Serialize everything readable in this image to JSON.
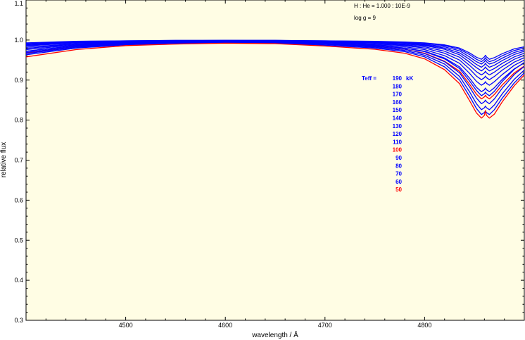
{
  "chart_data": {
    "type": "line",
    "title": "",
    "xlabel": "wavelength / Å",
    "ylabel": "relative flux",
    "xlim": [
      4400,
      4900
    ],
    "ylim": [
      0.3,
      1.1
    ],
    "x_ticks": [
      4500,
      4600,
      4700,
      4800
    ],
    "y_ticks": [
      0.3,
      0.4,
      0.5,
      0.6,
      0.7,
      0.8,
      0.9,
      1.0,
      1.1
    ],
    "x_tick_labels": [
      "4500",
      "4600",
      "4700",
      "4800"
    ],
    "y_tick_labels": [
      "0.3",
      "0.4",
      "0.5",
      "0.6",
      "0.7",
      "0.8",
      "0.9",
      "1.0",
      "1.1"
    ],
    "grid": false,
    "background_color": "#FFFDE4",
    "annotations": {
      "abundance": "H : He = 1.000 : 10E-9",
      "gravity": "log g = 9",
      "teff_label": "Teff =",
      "teff_unit": "kK"
    },
    "legend_placement": "right-inside",
    "line_feature_center": 4861,
    "x": [
      4400,
      4450,
      4500,
      4550,
      4600,
      4650,
      4700,
      4750,
      4780,
      4800,
      4820,
      4835,
      4845,
      4852,
      4857,
      4860,
      4861,
      4862,
      4865,
      4870,
      4878,
      4890,
      4900
    ],
    "series": [
      {
        "name": "190",
        "color": "#0000FF",
        "values": [
          0.993,
          0.997,
          0.998,
          0.999,
          0.999,
          0.999,
          0.998,
          0.997,
          0.995,
          0.993,
          0.988,
          0.98,
          0.968,
          0.957,
          0.952,
          0.958,
          0.962,
          0.958,
          0.952,
          0.956,
          0.966,
          0.978,
          0.983
        ]
      },
      {
        "name": "180",
        "color": "#0000FF",
        "values": [
          0.991,
          0.996,
          0.998,
          0.999,
          0.999,
          0.999,
          0.998,
          0.996,
          0.994,
          0.992,
          0.986,
          0.977,
          0.964,
          0.952,
          0.946,
          0.952,
          0.956,
          0.952,
          0.946,
          0.95,
          0.961,
          0.974,
          0.98
        ]
      },
      {
        "name": "170",
        "color": "#0000FF",
        "values": [
          0.989,
          0.995,
          0.997,
          0.998,
          0.999,
          0.999,
          0.997,
          0.995,
          0.993,
          0.99,
          0.983,
          0.973,
          0.958,
          0.946,
          0.94,
          0.946,
          0.95,
          0.946,
          0.94,
          0.944,
          0.955,
          0.969,
          0.976
        ]
      },
      {
        "name": "160",
        "color": "#0000FF",
        "values": [
          0.987,
          0.994,
          0.997,
          0.998,
          0.999,
          0.998,
          0.997,
          0.994,
          0.992,
          0.988,
          0.98,
          0.968,
          0.952,
          0.939,
          0.932,
          0.938,
          0.942,
          0.938,
          0.932,
          0.937,
          0.949,
          0.964,
          0.972
        ]
      },
      {
        "name": "150",
        "color": "#0000FF",
        "values": [
          0.985,
          0.993,
          0.996,
          0.998,
          0.998,
          0.998,
          0.996,
          0.993,
          0.99,
          0.986,
          0.977,
          0.963,
          0.945,
          0.931,
          0.923,
          0.929,
          0.933,
          0.929,
          0.923,
          0.929,
          0.942,
          0.958,
          0.967
        ]
      },
      {
        "name": "140",
        "color": "#0000FF",
        "values": [
          0.982,
          0.991,
          0.995,
          0.997,
          0.998,
          0.997,
          0.995,
          0.992,
          0.988,
          0.983,
          0.972,
          0.957,
          0.937,
          0.921,
          0.913,
          0.918,
          0.922,
          0.918,
          0.913,
          0.92,
          0.934,
          0.952,
          0.962
        ]
      },
      {
        "name": "130",
        "color": "#0000FF",
        "values": [
          0.979,
          0.99,
          0.994,
          0.997,
          0.997,
          0.997,
          0.994,
          0.99,
          0.986,
          0.98,
          0.967,
          0.95,
          0.928,
          0.91,
          0.901,
          0.906,
          0.91,
          0.906,
          0.901,
          0.909,
          0.925,
          0.945,
          0.956
        ]
      },
      {
        "name": "120",
        "color": "#0000FF",
        "values": [
          0.976,
          0.988,
          0.993,
          0.996,
          0.997,
          0.996,
          0.993,
          0.988,
          0.983,
          0.976,
          0.961,
          0.942,
          0.917,
          0.897,
          0.887,
          0.892,
          0.896,
          0.892,
          0.887,
          0.896,
          0.914,
          0.937,
          0.95
        ]
      },
      {
        "name": "110",
        "color": "#0000FF",
        "values": [
          0.972,
          0.986,
          0.992,
          0.995,
          0.996,
          0.995,
          0.991,
          0.986,
          0.98,
          0.972,
          0.955,
          0.933,
          0.905,
          0.882,
          0.871,
          0.876,
          0.88,
          0.876,
          0.871,
          0.881,
          0.902,
          0.928,
          0.943
        ]
      },
      {
        "name": "100",
        "color": "#FF0000",
        "values": [
          0.968,
          0.984,
          0.99,
          0.994,
          0.995,
          0.994,
          0.99,
          0.984,
          0.977,
          0.967,
          0.947,
          0.922,
          0.89,
          0.865,
          0.853,
          0.858,
          0.862,
          0.858,
          0.853,
          0.864,
          0.888,
          0.918,
          0.935
        ]
      },
      {
        "name": "90",
        "color": "#0000FF",
        "values": [
          0.972,
          0.986,
          0.992,
          0.995,
          0.996,
          0.995,
          0.991,
          0.986,
          0.98,
          0.971,
          0.953,
          0.929,
          0.898,
          0.874,
          0.861,
          0.866,
          0.87,
          0.866,
          0.861,
          0.872,
          0.897,
          0.927,
          0.944
        ]
      },
      {
        "name": "80",
        "color": "#0000FF",
        "values": [
          0.969,
          0.984,
          0.991,
          0.994,
          0.995,
          0.994,
          0.99,
          0.984,
          0.977,
          0.966,
          0.946,
          0.918,
          0.883,
          0.855,
          0.841,
          0.846,
          0.85,
          0.846,
          0.841,
          0.853,
          0.88,
          0.914,
          0.934
        ]
      },
      {
        "name": "70",
        "color": "#0000FF",
        "values": [
          0.966,
          0.982,
          0.989,
          0.993,
          0.994,
          0.993,
          0.989,
          0.982,
          0.974,
          0.962,
          0.94,
          0.909,
          0.871,
          0.841,
          0.826,
          0.831,
          0.835,
          0.831,
          0.826,
          0.838,
          0.866,
          0.902,
          0.925
        ]
      },
      {
        "name": "60",
        "color": "#0000FF",
        "values": [
          0.963,
          0.98,
          0.988,
          0.992,
          0.993,
          0.992,
          0.987,
          0.98,
          0.971,
          0.958,
          0.933,
          0.9,
          0.86,
          0.829,
          0.814,
          0.819,
          0.823,
          0.819,
          0.814,
          0.826,
          0.855,
          0.893,
          0.918
        ]
      },
      {
        "name": "50",
        "color": "#FF0000",
        "values": [
          0.958,
          0.976,
          0.986,
          0.99,
          0.992,
          0.991,
          0.985,
          0.977,
          0.967,
          0.953,
          0.926,
          0.891,
          0.849,
          0.818,
          0.805,
          0.812,
          0.824,
          0.812,
          0.805,
          0.815,
          0.846,
          0.886,
          0.913
        ]
      }
    ]
  }
}
